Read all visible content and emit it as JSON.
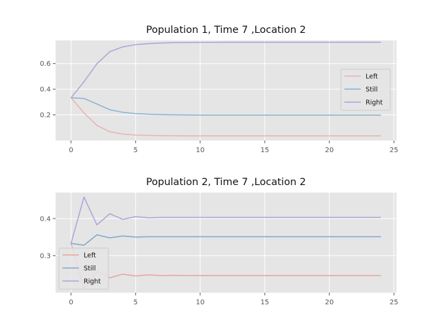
{
  "chart_data": [
    {
      "type": "line",
      "title": "Population 1, Time 7 ,Location 2",
      "xlabel": "",
      "ylabel": "",
      "xlim": [
        -1.2,
        25.2
      ],
      "ylim": [
        0.0,
        0.78
      ],
      "xticks": [
        0,
        5,
        10,
        15,
        20,
        25
      ],
      "xtick_labels": [
        "0",
        "5",
        "10",
        "15",
        "20",
        "25"
      ],
      "yticks": [
        0.2,
        0.4,
        0.6
      ],
      "ytick_labels": [
        "0.2",
        "0.4",
        "0.6"
      ],
      "grid": true,
      "legend_position": "center-right",
      "x": [
        0,
        1,
        2,
        3,
        4,
        5,
        6,
        7,
        8,
        9,
        10,
        11,
        12,
        13,
        14,
        15,
        16,
        17,
        18,
        19,
        20,
        21,
        22,
        23,
        24
      ],
      "series": [
        {
          "name": "Left",
          "color": "#E8B4B0",
          "values": [
            0.333,
            0.215,
            0.118,
            0.068,
            0.05,
            0.043,
            0.04,
            0.038,
            0.037,
            0.036,
            0.036,
            0.036,
            0.036,
            0.036,
            0.036,
            0.036,
            0.036,
            0.036,
            0.036,
            0.036,
            0.036,
            0.036,
            0.036,
            0.036,
            0.036
          ]
        },
        {
          "name": "Still",
          "color": "#8AB2CE",
          "values": [
            0.333,
            0.328,
            0.285,
            0.24,
            0.22,
            0.21,
            0.205,
            0.202,
            0.2,
            0.199,
            0.198,
            0.198,
            0.198,
            0.198,
            0.198,
            0.198,
            0.198,
            0.198,
            0.198,
            0.198,
            0.198,
            0.198,
            0.198,
            0.198,
            0.198
          ]
        },
        {
          "name": "Right",
          "color": "#ACA3D6",
          "values": [
            0.333,
            0.458,
            0.598,
            0.692,
            0.73,
            0.747,
            0.755,
            0.76,
            0.763,
            0.764,
            0.765,
            0.765,
            0.766,
            0.766,
            0.766,
            0.766,
            0.766,
            0.766,
            0.766,
            0.766,
            0.766,
            0.766,
            0.766,
            0.766,
            0.766
          ]
        }
      ]
    },
    {
      "type": "line",
      "title": "Population 2, Time 7 ,Location 2",
      "xlabel": "",
      "ylabel": "",
      "xlim": [
        -1.2,
        25.2
      ],
      "ylim": [
        0.2,
        0.47
      ],
      "xticks": [
        0,
        5,
        10,
        15,
        20,
        25
      ],
      "xtick_labels": [
        "0",
        "5",
        "10",
        "15",
        "20",
        "25"
      ],
      "yticks": [
        0.3,
        0.4
      ],
      "ytick_labels": [
        "0.3",
        "0.4"
      ],
      "grid": true,
      "legend_position": "lower-left",
      "x": [
        0,
        1,
        2,
        3,
        4,
        5,
        6,
        7,
        8,
        9,
        10,
        11,
        12,
        13,
        14,
        15,
        16,
        17,
        18,
        19,
        20,
        21,
        22,
        23,
        24
      ],
      "series": [
        {
          "name": "Left",
          "color": "#E8A49C",
          "values": [
            0.333,
            0.21,
            0.258,
            0.24,
            0.25,
            0.245,
            0.248,
            0.246,
            0.247,
            0.246,
            0.246,
            0.246,
            0.246,
            0.246,
            0.246,
            0.246,
            0.246,
            0.246,
            0.246,
            0.246,
            0.246,
            0.246,
            0.246,
            0.246,
            0.246
          ]
        },
        {
          "name": "Still",
          "color": "#7DA9CD",
          "values": [
            0.333,
            0.328,
            0.356,
            0.348,
            0.353,
            0.35,
            0.351,
            0.351,
            0.351,
            0.351,
            0.351,
            0.351,
            0.351,
            0.351,
            0.351,
            0.351,
            0.351,
            0.351,
            0.351,
            0.351,
            0.351,
            0.351,
            0.351,
            0.351,
            0.351
          ]
        },
        {
          "name": "Right",
          "color": "#ACA3D6",
          "values": [
            0.333,
            0.458,
            0.383,
            0.413,
            0.398,
            0.405,
            0.402,
            0.403,
            0.403,
            0.403,
            0.403,
            0.403,
            0.403,
            0.403,
            0.403,
            0.403,
            0.403,
            0.403,
            0.403,
            0.403,
            0.403,
            0.403,
            0.403,
            0.403,
            0.403
          ]
        }
      ]
    }
  ]
}
